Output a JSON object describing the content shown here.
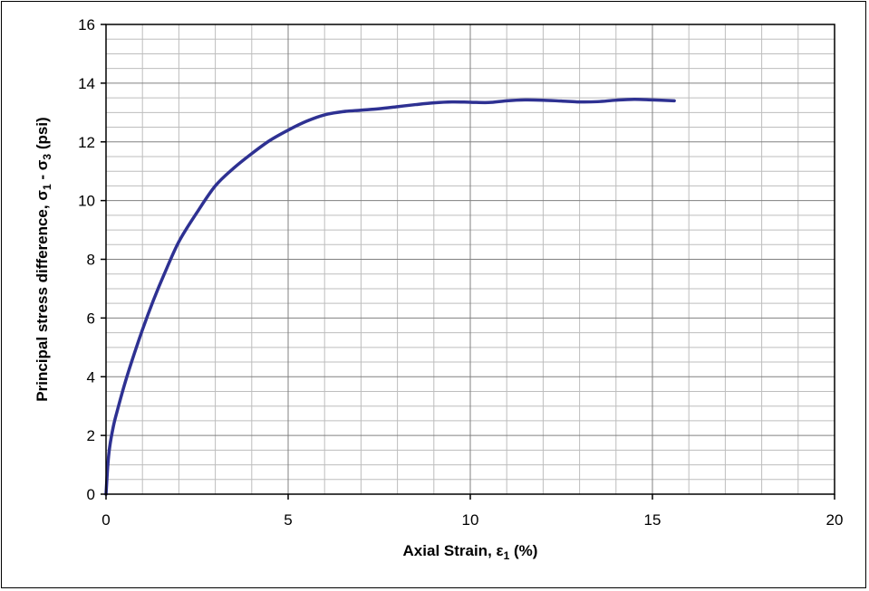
{
  "chart_data": {
    "type": "line",
    "title": "",
    "xlabel": "Axial Strain, ε₁ (%)",
    "ylabel": "Principal stress difference, σ₁ - σ₃ (psi)",
    "xlabel_parts": {
      "main": "Axial Strain, ε",
      "sub": "1",
      "end": " (%)"
    },
    "ylabel_parts": {
      "main": "Principal stress difference, σ",
      "sub1": "1",
      "mid": " - σ",
      "sub2": "3",
      "end": " (psi)"
    },
    "xlim": [
      0,
      20
    ],
    "ylim": [
      0,
      16
    ],
    "x_ticks": [
      0,
      5,
      10,
      15,
      20
    ],
    "y_ticks": [
      0,
      2,
      4,
      6,
      8,
      10,
      12,
      14,
      16
    ],
    "x_tick_labels": [
      "0",
      "5",
      "10",
      "15",
      "20"
    ],
    "y_tick_labels": [
      "0",
      "2",
      "4",
      "6",
      "8",
      "10",
      "12",
      "14",
      "16"
    ],
    "x_minor_step": 1,
    "y_minor_step": 0.5,
    "grid": true,
    "legend": "none",
    "series": [
      {
        "color": "#2E3192",
        "x": [
          0,
          0.05,
          0.1,
          0.2,
          0.3,
          0.5,
          0.7,
          1.0,
          1.3,
          1.6,
          2.0,
          2.5,
          3.0,
          3.5,
          4.0,
          4.5,
          5.0,
          5.5,
          6.0,
          6.5,
          7.0,
          7.5,
          8.0,
          8.5,
          9.0,
          9.5,
          10.0,
          10.5,
          11.0,
          11.5,
          12.0,
          12.5,
          13.0,
          13.5,
          14.0,
          14.5,
          15.0,
          15.6
        ],
        "y": [
          0,
          1.0,
          1.6,
          2.3,
          2.8,
          3.7,
          4.5,
          5.6,
          6.6,
          7.5,
          8.6,
          9.6,
          10.5,
          11.1,
          11.6,
          12.05,
          12.4,
          12.7,
          12.92,
          13.03,
          13.08,
          13.13,
          13.2,
          13.27,
          13.33,
          13.36,
          13.35,
          13.34,
          13.4,
          13.43,
          13.42,
          13.39,
          13.36,
          13.37,
          13.42,
          13.45,
          13.43,
          13.4
        ]
      }
    ]
  }
}
